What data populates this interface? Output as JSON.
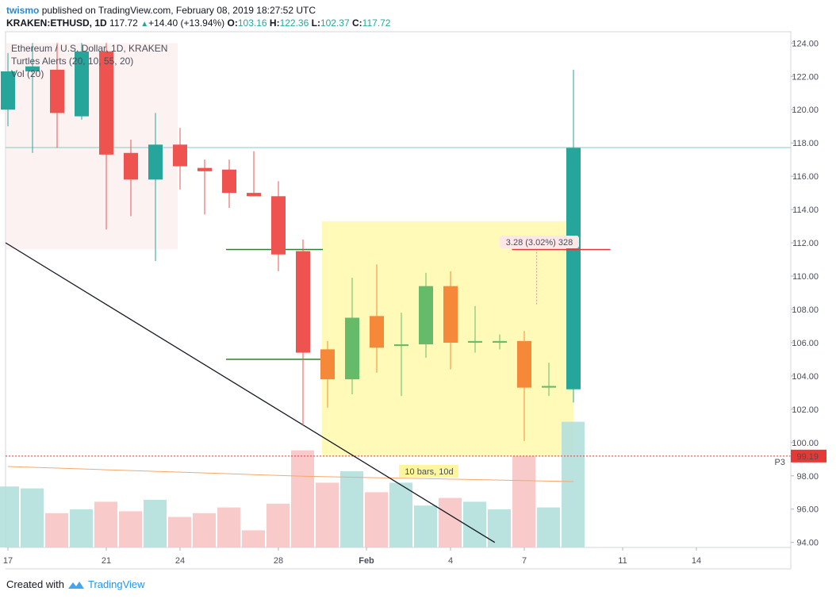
{
  "header": {
    "author": "twismo",
    "published_text": "published on TradingView.com, February 08, 2019 18:27:52 UTC",
    "symbol_line": "KRAKEN:ETHUSD, 1D",
    "last": "117.72",
    "change": "+14.40 (+13.94%)",
    "o_label": "O:",
    "o": "103.16",
    "h_label": "H:",
    "h": "122.36",
    "l_label": "L:",
    "l": "102.37",
    "c_label": "C:",
    "c": "117.72"
  },
  "legend": {
    "line1": "Ethereum / U.S. Dollar, 1D, KRAKEN",
    "line2": "Turtles Alerts (20, 10, 55, 20)",
    "line3": "Vol (20)"
  },
  "footer": {
    "created_with": "Created with",
    "brand": "TradingView"
  },
  "colors": {
    "up": "#26a69a",
    "down": "#ef5350",
    "turtle_up": "#66bb6a",
    "turtle_down": "#f6883a",
    "accent": "#2196f3"
  },
  "chart_data": {
    "type": "candlestick",
    "y_ticks": [
      "94.00",
      "96.00",
      "98.00",
      "100.00",
      "102.00",
      "104.00",
      "106.00",
      "108.00",
      "110.00",
      "112.00",
      "114.00",
      "116.00",
      "118.00",
      "120.00",
      "122.00",
      "124.00"
    ],
    "y_range": [
      93.7,
      124.3
    ],
    "x_ticks": [
      {
        "label": "17",
        "i": 0
      },
      {
        "label": "21",
        "i": 4
      },
      {
        "label": "24",
        "i": 7
      },
      {
        "label": "28",
        "i": 11
      },
      {
        "label": "Feb",
        "i": 15
      },
      {
        "label": "4",
        "i": 18
      },
      {
        "label": "7",
        "i": 21
      },
      {
        "label": "11",
        "i": 25
      },
      {
        "label": "14",
        "i": 28
      }
    ],
    "candles": [
      {
        "o": 120.0,
        "h": 123.4,
        "l": 119.0,
        "c": 122.3,
        "color": "up",
        "vol": 0.32
      },
      {
        "o": 122.3,
        "h": 124.0,
        "l": 117.4,
        "c": 122.6,
        "color": "up",
        "vol": 0.31
      },
      {
        "o": 122.4,
        "h": 124.0,
        "l": 117.7,
        "c": 119.8,
        "color": "down",
        "vol": 0.18
      },
      {
        "o": 119.6,
        "h": 124.0,
        "l": 119.4,
        "c": 123.5,
        "color": "up",
        "vol": 0.2
      },
      {
        "o": 123.5,
        "h": 124.0,
        "l": 112.8,
        "c": 117.3,
        "color": "down",
        "vol": 0.24
      },
      {
        "o": 117.4,
        "h": 118.2,
        "l": 113.6,
        "c": 115.8,
        "color": "down",
        "vol": 0.19
      },
      {
        "o": 115.8,
        "h": 119.8,
        "l": 110.9,
        "c": 117.9,
        "color": "up",
        "vol": 0.25
      },
      {
        "o": 117.9,
        "h": 118.9,
        "l": 115.2,
        "c": 116.6,
        "color": "down",
        "vol": 0.16
      },
      {
        "o": 116.5,
        "h": 117.0,
        "l": 113.7,
        "c": 116.3,
        "color": "down",
        "vol": 0.18
      },
      {
        "o": 116.4,
        "h": 117.0,
        "l": 114.1,
        "c": 115.0,
        "color": "down",
        "vol": 0.21
      },
      {
        "o": 115.0,
        "h": 117.5,
        "l": 114.8,
        "c": 114.8,
        "color": "down",
        "vol": 0.09
      },
      {
        "o": 114.8,
        "h": 115.7,
        "l": 110.3,
        "c": 111.3,
        "color": "down",
        "vol": 0.23
      },
      {
        "o": 111.5,
        "h": 112.2,
        "l": 101.0,
        "c": 105.4,
        "color": "down",
        "vol": 0.51
      },
      {
        "o": 105.6,
        "h": 106.1,
        "l": 102.1,
        "c": 103.8,
        "color": "turtle_down",
        "vol": 0.34
      },
      {
        "o": 103.8,
        "h": 109.9,
        "l": 102.9,
        "c": 107.5,
        "color": "turtle_up",
        "vol": 0.4
      },
      {
        "o": 107.6,
        "h": 110.7,
        "l": 104.2,
        "c": 105.7,
        "color": "turtle_down",
        "vol": 0.29
      },
      {
        "o": 105.8,
        "h": 107.8,
        "l": 102.8,
        "c": 105.9,
        "color": "turtle_up",
        "vol": 0.34
      },
      {
        "o": 105.9,
        "h": 110.2,
        "l": 105.1,
        "c": 109.4,
        "color": "turtle_up",
        "vol": 0.22
      },
      {
        "o": 109.4,
        "h": 110.3,
        "l": 104.4,
        "c": 106.0,
        "color": "turtle_down",
        "vol": 0.26
      },
      {
        "o": 106.0,
        "h": 108.2,
        "l": 105.4,
        "c": 106.1,
        "color": "turtle_up",
        "vol": 0.24
      },
      {
        "o": 106.0,
        "h": 106.5,
        "l": 105.6,
        "c": 106.1,
        "color": "turtle_up",
        "vol": 0.2
      },
      {
        "o": 106.1,
        "h": 106.7,
        "l": 100.1,
        "c": 103.3,
        "color": "turtle_down",
        "vol": 0.48
      },
      {
        "o": 103.3,
        "h": 104.8,
        "l": 102.8,
        "c": 103.4,
        "color": "turtle_up",
        "vol": 0.21
      },
      {
        "o": 103.2,
        "h": 122.4,
        "l": 102.4,
        "c": 117.7,
        "color": "up",
        "vol": 0.66
      }
    ],
    "price_line": {
      "value": 117.72
    },
    "last_close_label": {
      "value": "99.19",
      "tag": "P3",
      "price": 99.19
    },
    "highlight_zone": {
      "from_i": 13,
      "to_i": 23,
      "y_top": 113.3,
      "y_bottom": 99.2
    },
    "shade_zone": {
      "from_i": 0,
      "to_i": 7,
      "y_top": 124.0,
      "y_bottom": 111.6
    },
    "turtle_levels": [
      {
        "from_i": 9,
        "to_i": 13,
        "y": 111.6
      },
      {
        "from_i": 9,
        "to_i": 13,
        "y": 105.0
      }
    ],
    "measure": {
      "label": "3.28 (3.02%) 328",
      "i": 21.5,
      "from_y": 108.3,
      "to_y": 111.6,
      "line_from_i": 20.5,
      "line_to_i": 24.5
    },
    "bars_label": "10 bars, 10d",
    "trendline": {
      "x1_i": -1.0,
      "y1": 112.0,
      "x2_i": 19.8,
      "y2": 94.0
    }
  }
}
